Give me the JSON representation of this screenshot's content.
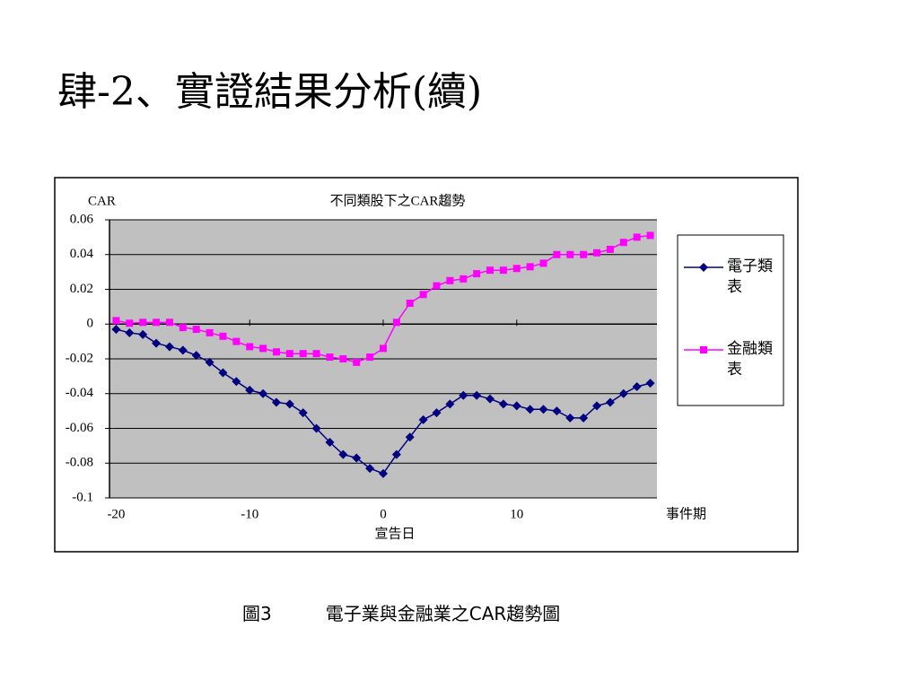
{
  "header": {
    "title": "肆-2、實證結果分析(續)"
  },
  "chart_data": {
    "type": "line",
    "title": "不同類股下之CAR趨勢",
    "y_label": "CAR",
    "x_label": "事件期",
    "annotation": "宣告日",
    "x": [
      -20,
      -19,
      -18,
      -17,
      -16,
      -15,
      -14,
      -13,
      -12,
      -11,
      -10,
      -9,
      -8,
      -7,
      -6,
      -5,
      -4,
      -3,
      -2,
      -1,
      0,
      1,
      2,
      3,
      4,
      5,
      6,
      7,
      8,
      9,
      10,
      11,
      12,
      13,
      14,
      15,
      16,
      17,
      18,
      19,
      20
    ],
    "series": [
      {
        "name": "電子類表",
        "color": "#000080",
        "marker": "diamond",
        "values": [
          -0.003,
          -0.005,
          -0.006,
          -0.011,
          -0.013,
          -0.015,
          -0.018,
          -0.022,
          -0.028,
          -0.033,
          -0.038,
          -0.04,
          -0.045,
          -0.046,
          -0.051,
          -0.06,
          -0.068,
          -0.075,
          -0.077,
          -0.083,
          -0.086,
          -0.075,
          -0.065,
          -0.055,
          -0.051,
          -0.046,
          -0.041,
          -0.041,
          -0.043,
          -0.046,
          -0.047,
          -0.049,
          -0.049,
          -0.05,
          -0.054,
          -0.054,
          -0.047,
          -0.045,
          -0.04,
          -0.036,
          -0.034
        ]
      },
      {
        "name": "金融類表",
        "color": "#ff00ff",
        "marker": "square",
        "values": [
          0.002,
          0.0005,
          0.001,
          0.001,
          0.001,
          -0.002,
          -0.003,
          -0.005,
          -0.007,
          -0.01,
          -0.013,
          -0.014,
          -0.016,
          -0.017,
          -0.017,
          -0.017,
          -0.019,
          -0.02,
          -0.022,
          -0.019,
          -0.014,
          0.001,
          0.012,
          0.017,
          0.022,
          0.025,
          0.026,
          0.029,
          0.031,
          0.031,
          0.032,
          0.033,
          0.035,
          0.04,
          0.04,
          0.04,
          0.041,
          0.043,
          0.047,
          0.05,
          0.051
        ]
      }
    ],
    "xlim": [
      -20.5,
      20.5
    ],
    "xticks": [
      -20,
      -10,
      0,
      10
    ],
    "ylim": [
      -0.1,
      0.06
    ],
    "yticks": [
      -0.1,
      -0.08,
      -0.06,
      -0.04,
      -0.02,
      0,
      0.02,
      0.04,
      0.06
    ],
    "grid": true,
    "plot_background": "#c0c0c0",
    "legend": "right"
  },
  "caption": {
    "figure": "圖3",
    "text": "電子業與金融業之CAR趨勢圖"
  }
}
